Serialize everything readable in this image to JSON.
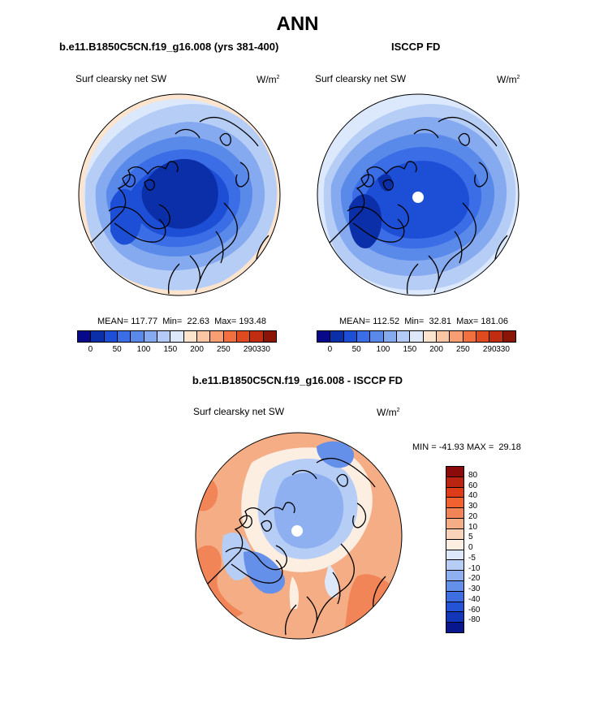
{
  "title": "ANN",
  "panels": [
    {
      "case": "b.e11.B1850C5CN.f19_g16.008 (yrs 381-400)",
      "variable": "Surf clearsky net SW",
      "units": "W/m",
      "units_exp": "2",
      "stats": "MEAN= 117.77  Min=  22.63  Max= 193.48"
    },
    {
      "case": "ISCCP FD",
      "variable": "Surf clearsky net SW",
      "units": "W/m",
      "units_exp": "2",
      "stats": "MEAN= 112.52  Min=  32.81  Max= 181.06"
    },
    {
      "case": "b.e11.B1850C5CN.f19_g16.008 - ISCCP FD",
      "variable": "Surf clearsky net SW",
      "units": "W/m",
      "units_exp": "2",
      "stats": "MIN = -41.93 MAX =  29.18"
    }
  ],
  "colorbar_top": {
    "colors": [
      "#08088a",
      "#0b2fa8",
      "#1d4fd6",
      "#3b6ee6",
      "#5a8ae9",
      "#86aaf0",
      "#b3cbf6",
      "#dde9fb",
      "#fde4cf",
      "#fbc6a3",
      "#f79e73",
      "#f27040",
      "#e04a1f",
      "#c02d10",
      "#8a1405"
    ],
    "ticks": [
      "0",
      "50",
      "100",
      "150",
      "200",
      "250",
      "290",
      "330"
    ]
  },
  "colorbar_diff": {
    "colors": [
      "#8b0a0a",
      "#bb2410",
      "#de3c19",
      "#f26130",
      "#f18557",
      "#f5ad86",
      "#f9d4b8",
      "#fdeee2",
      "#dde8fb",
      "#b6cdf5",
      "#8eb0f1",
      "#6590ea",
      "#3d6ee2",
      "#2553d6",
      "#1236b8",
      "#08188c"
    ],
    "ticks": [
      "80",
      "60",
      "40",
      "30",
      "20",
      "10",
      "5",
      "0",
      "-5",
      "-10",
      "-20",
      "-30",
      "-40",
      "-60",
      "-80"
    ]
  }
}
